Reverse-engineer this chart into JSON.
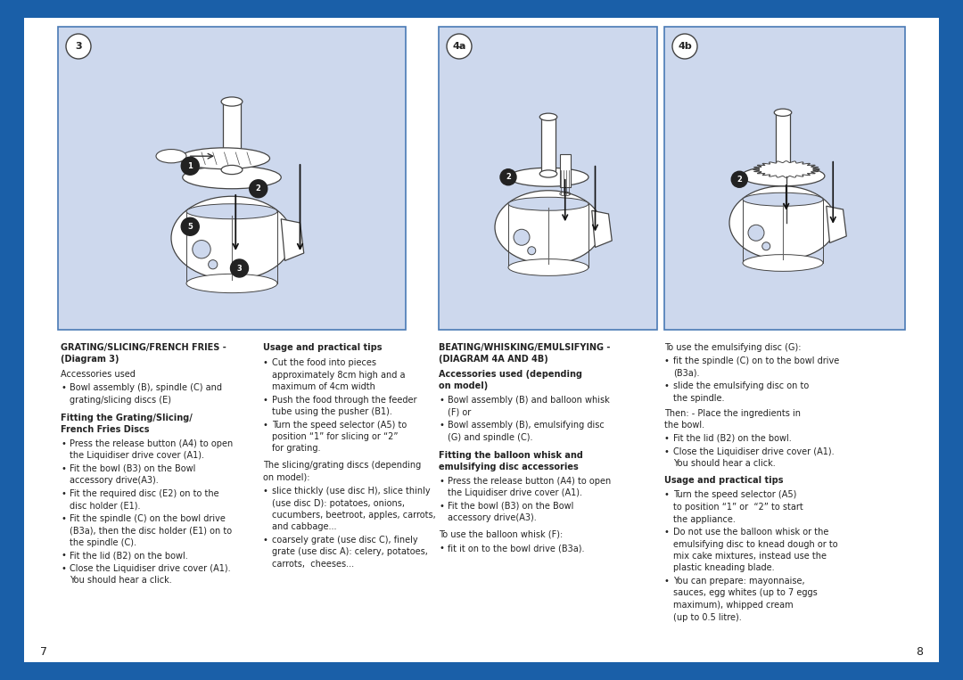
{
  "bg_color": "#1a5fa8",
  "page_bg": "#ffffff",
  "diagram_bg": "#cdd8ed",
  "diagram_border": "#4a7ab5",
  "col1_bullets2": [
    "Press the release button (A4) to open\nthe Liquidiser drive cover (A1).",
    "Fit the bowl (B3) on the Bowl\naccessory drive(A3).",
    "Fit the required disc (E2) on to the\ndisc holder (E1).",
    "Fit the spindle (C) on the bowl drive\n(B3a), then the disc holder (E1) on to\nthe spindle (C).",
    "Fit the lid (B2) on the bowl.",
    "Close the Liquidiser drive cover (A1).\nYou should hear a click."
  ],
  "col2_bullets": [
    "Cut the food into pieces\napproximately 8cm high and a\nmaximum of 4cm width",
    "Push the food through the feeder\ntube using the pusher (B1).",
    "Turn the speed selector (A5) to\nposition “1” for slicing or “2”\nfor grating."
  ],
  "col2_bullets2": [
    "slice thickly (use disc H), slice thinly\n(use disc D): potatoes, onions,\ncucumbers, beetroot, apples, carrots,\nand cabbage...",
    "coarsely grate (use disc C), finely\ngrate (use disc A): celery, potatoes,\ncarrots,  cheeses..."
  ],
  "col3_bullets1": [
    "Bowl assembly (B) and balloon whisk\n(F) or",
    "Bowl assembly (B), emulsifying disc\n(G) and spindle (C)."
  ],
  "col3_bullets2": [
    "Press the release button (A4) to open\nthe Liquidiser drive cover (A1).",
    "Fit the bowl (B3) on the Bowl\naccessory drive(A3)."
  ],
  "col3_bullets3": [
    "fit it on to the bowl drive (B3a)."
  ],
  "col4_bullets0": [
    "fit the spindle (C) on to the bowl drive\n(B3a).",
    "slide the emulsifying disc on to\nthe spindle."
  ],
  "col4_bullets1": [
    "Fit the lid (B2) on the bowl.",
    "Close the Liquidiser drive cover (A1).\nYou should hear a click."
  ],
  "col4_bullets2": [
    "Turn the speed selector (A5)\nto position “1” or  “2” to start\nthe appliance.",
    "Do not use the balloon whisk or the\nemulsifying disc to knead dough or to\nmix cake mixtures, instead use the\nplastic kneading blade.",
    "You can prepare: mayonnaise,\nsauces, egg whites (up to 7 eggs\nmaximum), whipped cream\n(up to 0.5 litre)."
  ]
}
